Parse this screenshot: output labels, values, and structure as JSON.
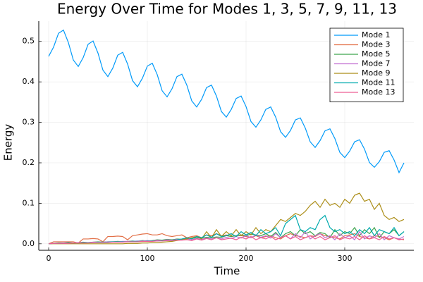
{
  "chart_data": {
    "type": "line",
    "title": "Energy Over Time for Modes 1, 3, 5, 7, 9, 11, 13",
    "x_label": "Time",
    "y_label": "Energy",
    "x": [
      0,
      5,
      10,
      15,
      20,
      25,
      30,
      35,
      40,
      45,
      50,
      55,
      60,
      65,
      70,
      75,
      80,
      85,
      90,
      95,
      100,
      105,
      110,
      115,
      120,
      125,
      130,
      135,
      140,
      145,
      150,
      155,
      160,
      165,
      170,
      175,
      180,
      185,
      190,
      195,
      200,
      205,
      210,
      215,
      220,
      225,
      230,
      235,
      240,
      245,
      250,
      255,
      260,
      265,
      270,
      275,
      280,
      285,
      290,
      295,
      300,
      305,
      310,
      315,
      320,
      325,
      330,
      335,
      340,
      345,
      350,
      355,
      360
    ],
    "series": [
      {
        "name": "Mode 1",
        "color": "#009af9",
        "values": [
          0.463,
          0.486,
          0.52,
          0.528,
          0.497,
          0.454,
          0.438,
          0.46,
          0.493,
          0.501,
          0.471,
          0.429,
          0.413,
          0.434,
          0.466,
          0.473,
          0.444,
          0.403,
          0.388,
          0.409,
          0.439,
          0.446,
          0.418,
          0.378,
          0.363,
          0.383,
          0.413,
          0.419,
          0.392,
          0.353,
          0.338,
          0.357,
          0.386,
          0.392,
          0.365,
          0.327,
          0.313,
          0.332,
          0.359,
          0.365,
          0.339,
          0.302,
          0.288,
          0.306,
          0.332,
          0.338,
          0.313,
          0.277,
          0.263,
          0.28,
          0.306,
          0.311,
          0.286,
          0.252,
          0.238,
          0.255,
          0.279,
          0.284,
          0.26,
          0.226,
          0.213,
          0.229,
          0.252,
          0.257,
          0.234,
          0.201,
          0.189,
          0.203,
          0.226,
          0.23,
          0.207,
          0.176,
          0.2
        ]
      },
      {
        "name": "Mode 3",
        "color": "#e26f46",
        "values": [
          0,
          0.005,
          0.005,
          0.005,
          0.005,
          0.005,
          0.002,
          0.012,
          0.012,
          0.013,
          0.012,
          0.005,
          0.018,
          0.018,
          0.019,
          0.018,
          0.01,
          0.02,
          0.022,
          0.024,
          0.025,
          0.022,
          0.022,
          0.025,
          0.02,
          0.018,
          0.02,
          0.022,
          0.015,
          0.018,
          0.02,
          0.015,
          0.022,
          0.02,
          0.025,
          0.02,
          0.022,
          0.018,
          0.02,
          0.02,
          0.018,
          0.015,
          0.02,
          0.015,
          0.018,
          0.02,
          0.015,
          0.012,
          0.02,
          0.025,
          0.02,
          0.018,
          0.015,
          0.02,
          0.018,
          0.025,
          0.02,
          0.018,
          0.015,
          0.012,
          0.02,
          0.022,
          0.025,
          0.018,
          0.015,
          0.012,
          0.02,
          0.018,
          0.015,
          0.01,
          0.015,
          0.012,
          0.01
        ]
      },
      {
        "name": "Mode 5",
        "color": "#3ea44e",
        "values": [
          0,
          0.001,
          0.002,
          0.002,
          0.003,
          0.002,
          0.003,
          0.004,
          0.003,
          0.004,
          0.005,
          0.004,
          0.005,
          0.005,
          0.006,
          0.005,
          0.006,
          0.007,
          0.006,
          0.008,
          0.007,
          0.008,
          0.01,
          0.009,
          0.011,
          0.01,
          0.012,
          0.011,
          0.014,
          0.013,
          0.015,
          0.014,
          0.016,
          0.015,
          0.017,
          0.016,
          0.02,
          0.018,
          0.02,
          0.022,
          0.02,
          0.024,
          0.022,
          0.02,
          0.025,
          0.018,
          0.028,
          0.015,
          0.025,
          0.03,
          0.02,
          0.035,
          0.025,
          0.03,
          0.02,
          0.028,
          0.025,
          0.015,
          0.035,
          0.02,
          0.03,
          0.025,
          0.04,
          0.02,
          0.035,
          0.025,
          0.04,
          0.015,
          0.03,
          0.025,
          0.035,
          0.02,
          0.03
        ]
      },
      {
        "name": "Mode 7",
        "color": "#c271d2",
        "values": [
          0,
          0.001,
          0.001,
          0.002,
          0.002,
          0.002,
          0.003,
          0.003,
          0.003,
          0.004,
          0.004,
          0.004,
          0.005,
          0.005,
          0.005,
          0.006,
          0.006,
          0.006,
          0.007,
          0.007,
          0.008,
          0.007,
          0.009,
          0.008,
          0.01,
          0.009,
          0.011,
          0.01,
          0.012,
          0.01,
          0.013,
          0.011,
          0.014,
          0.012,
          0.015,
          0.012,
          0.016,
          0.013,
          0.018,
          0.014,
          0.02,
          0.015,
          0.022,
          0.016,
          0.02,
          0.014,
          0.025,
          0.015,
          0.02,
          0.012,
          0.025,
          0.015,
          0.03,
          0.012,
          0.02,
          0.025,
          0.015,
          0.02,
          0.01,
          0.025,
          0.015,
          0.02,
          0.01,
          0.03,
          0.012,
          0.02,
          0.015,
          0.025,
          0.01,
          0.02,
          0.015,
          0.012,
          0.018
        ]
      },
      {
        "name": "Mode 9",
        "color": "#ac8e18",
        "values": [
          0,
          0,
          0,
          0,
          0,
          0,
          0,
          0,
          0,
          0,
          0,
          0,
          0,
          0,
          0,
          0,
          0.001,
          0.001,
          0.001,
          0.002,
          0.002,
          0.003,
          0.003,
          0.004,
          0.005,
          0.006,
          0.008,
          0.01,
          0.012,
          0.015,
          0.018,
          0.012,
          0.03,
          0.015,
          0.035,
          0.018,
          0.03,
          0.02,
          0.035,
          0.02,
          0.03,
          0.022,
          0.04,
          0.025,
          0.035,
          0.03,
          0.045,
          0.06,
          0.055,
          0.065,
          0.075,
          0.07,
          0.08,
          0.095,
          0.105,
          0.09,
          0.11,
          0.095,
          0.1,
          0.09,
          0.11,
          0.1,
          0.12,
          0.125,
          0.105,
          0.11,
          0.085,
          0.1,
          0.07,
          0.06,
          0.065,
          0.055,
          0.06
        ]
      },
      {
        "name": "Mode 11",
        "color": "#00aaae",
        "values": [
          0,
          0.001,
          0.001,
          0.001,
          0.002,
          0.002,
          0.002,
          0.003,
          0.003,
          0.003,
          0.004,
          0.004,
          0.004,
          0.005,
          0.005,
          0.005,
          0.005,
          0.006,
          0.006,
          0.006,
          0.007,
          0.007,
          0.007,
          0.008,
          0.008,
          0.009,
          0.01,
          0.012,
          0.015,
          0.012,
          0.018,
          0.015,
          0.022,
          0.016,
          0.025,
          0.018,
          0.02,
          0.025,
          0.018,
          0.03,
          0.022,
          0.028,
          0.02,
          0.035,
          0.025,
          0.03,
          0.04,
          0.02,
          0.05,
          0.06,
          0.07,
          0.035,
          0.03,
          0.04,
          0.035,
          0.06,
          0.07,
          0.04,
          0.03,
          0.035,
          0.025,
          0.03,
          0.02,
          0.035,
          0.025,
          0.04,
          0.02,
          0.035,
          0.03,
          0.025,
          0.04,
          0.02,
          0.03
        ]
      },
      {
        "name": "Mode 13",
        "color": "#ed5e93",
        "values": [
          0,
          0.001,
          0.001,
          0.001,
          0.001,
          0.002,
          0.002,
          0.002,
          0.002,
          0.003,
          0.003,
          0.003,
          0.003,
          0.004,
          0.004,
          0.004,
          0.005,
          0.005,
          0.005,
          0.006,
          0.006,
          0.006,
          0.007,
          0.007,
          0.008,
          0.008,
          0.009,
          0.009,
          0.01,
          0.008,
          0.012,
          0.009,
          0.013,
          0.01,
          0.015,
          0.01,
          0.012,
          0.014,
          0.01,
          0.016,
          0.012,
          0.018,
          0.01,
          0.015,
          0.012,
          0.018,
          0.01,
          0.015,
          0.02,
          0.012,
          0.018,
          0.01,
          0.015,
          0.02,
          0.012,
          0.018,
          0.01,
          0.015,
          0.02,
          0.01,
          0.015,
          0.012,
          0.018,
          0.01,
          0.02,
          0.012,
          0.015,
          0.01,
          0.018,
          0.012,
          0.015,
          0.01,
          0.012
        ]
      }
    ],
    "xlim": [
      -10,
      370
    ],
    "ylim": [
      -0.016,
      0.55
    ],
    "xticks": [
      0,
      100,
      200,
      300
    ],
    "yticks": [
      {
        "value": 0,
        "label": "0.0"
      },
      0.1,
      0.2,
      0.3,
      0.4,
      0.5
    ],
    "grid": true,
    "legend": "top-right"
  }
}
